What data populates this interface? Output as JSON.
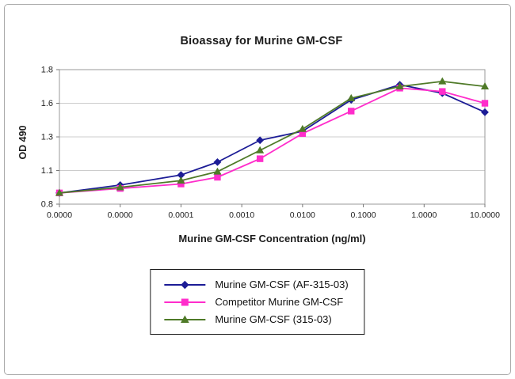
{
  "chart_data": {
    "type": "line",
    "title": "Bioassay for Murine GM-CSF",
    "xlabel": "Murine GM-CSF Concentration (ng/ml)",
    "ylabel": "OD 490",
    "y_ticks": [
      0.8,
      1.1,
      1.3,
      1.6,
      1.8
    ],
    "ylim": [
      0.8,
      1.8
    ],
    "x_tick_labels": [
      "0.0000",
      "0.0000",
      "0.0001",
      "0.0010",
      "0.0100",
      "0.1000",
      "1.0000",
      "10.0000"
    ],
    "grid": "horizontal",
    "legend_position": "bottom",
    "x": [
      0,
      1,
      2,
      2.6,
      3.3,
      4.0,
      4.8,
      5.6,
      6.3,
      7
    ],
    "series": [
      {
        "name": "Murine GM-CSF (AF-315-03)",
        "color": "#1c1c96",
        "marker": "diamond",
        "values": [
          0.9,
          0.97,
          1.06,
          1.15,
          1.28,
          1.35,
          1.62,
          1.71,
          1.66,
          1.52
        ]
      },
      {
        "name": "Competitor Murine GM-CSF",
        "color": "#ff2dcb",
        "marker": "square",
        "values": [
          0.9,
          0.94,
          0.98,
          1.04,
          1.17,
          1.33,
          1.53,
          1.69,
          1.67,
          1.6
        ]
      },
      {
        "name": "Murine GM-CSF (315-03)",
        "color": "#4f7a28",
        "marker": "triangle",
        "values": [
          0.9,
          0.95,
          1.01,
          1.09,
          1.22,
          1.37,
          1.63,
          1.7,
          1.73,
          1.7
        ]
      }
    ]
  }
}
